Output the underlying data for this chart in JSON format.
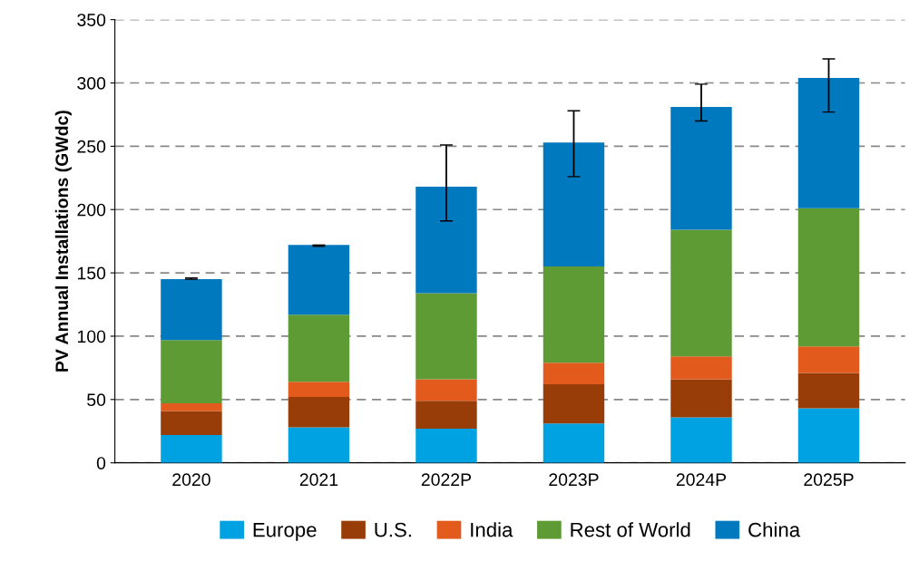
{
  "chart_data": {
    "type": "bar",
    "stacked": true,
    "ylabel": "PV Annual Installations (GWdc)",
    "categories": [
      "2020",
      "2021",
      "2022P",
      "2023P",
      "2024P",
      "2025P"
    ],
    "series": [
      {
        "name": "Europe",
        "color": "#00a2e2",
        "values": [
          22,
          28,
          27,
          31,
          36,
          43
        ]
      },
      {
        "name": "U.S.",
        "color": "#983c08",
        "values": [
          19,
          24,
          22,
          31,
          30,
          28
        ]
      },
      {
        "name": "India",
        "color": "#e25a1c",
        "values": [
          6,
          12,
          17,
          17,
          18,
          21
        ]
      },
      {
        "name": "Rest of World",
        "color": "#5f9b35",
        "values": [
          50,
          53,
          68,
          76,
          100,
          109
        ]
      },
      {
        "name": "China",
        "color": "#0079bf",
        "values": [
          48,
          55,
          84,
          98,
          97,
          103
        ],
        "errors": [
          [
            145,
            146
          ],
          [
            171,
            172
          ],
          [
            191,
            251
          ],
          [
            226,
            278
          ],
          [
            270,
            299
          ],
          [
            277,
            319
          ]
        ]
      }
    ],
    "ylim": [
      0,
      350
    ],
    "yticks": [
      0,
      50,
      100,
      150,
      200,
      250,
      300,
      350
    ],
    "grid": "y",
    "legend": "bottom"
  }
}
